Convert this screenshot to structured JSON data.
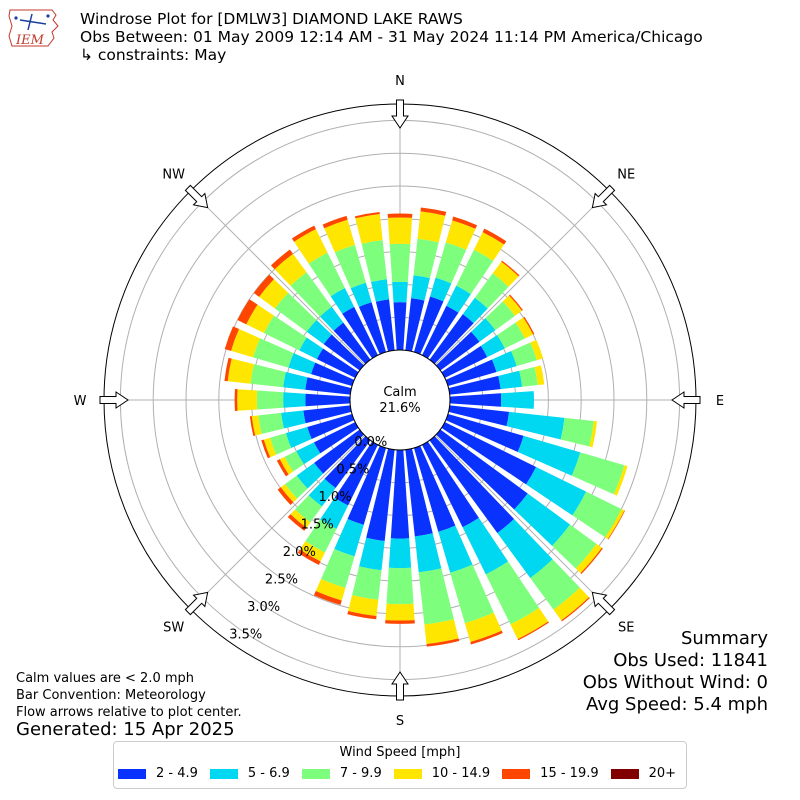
{
  "header": {
    "logo_text": "IEM",
    "title": "Windrose Plot for [DMLW3] DIAMOND LAKE RAWS",
    "period": "Obs Between: 01 May 2009 12:14 AM - 31 May 2024 11:14 PM America/Chicago",
    "constraints": "↳ constraints: May"
  },
  "summary": {
    "heading": "Summary",
    "obs_used": "Obs Used: 11841",
    "obs_without_wind": "Obs Without Wind: 0",
    "avg_speed": "Avg Speed: 5.4 mph"
  },
  "notes": {
    "calm": "Calm values are < 2.0 mph",
    "convention": "Bar Convention: Meteorology",
    "flow": "Flow arrows relative to plot center.",
    "generated": "Generated: 15 Apr 2025"
  },
  "legend": {
    "title": "Wind Speed [mph]",
    "items": [
      {
        "label": "2 - 4.9",
        "color": "#0a32ff"
      },
      {
        "label": "5 - 6.9",
        "color": "#00d7f0"
      },
      {
        "label": "7 - 9.9",
        "color": "#7dff7d"
      },
      {
        "label": "10 - 14.9",
        "color": "#ffe600"
      },
      {
        "label": "15 - 19.9",
        "color": "#ff4600"
      },
      {
        "label": "20+",
        "color": "#800000"
      }
    ]
  },
  "chart_data": {
    "type": "windrose",
    "calm_label": "Calm",
    "calm_value": "21.6%",
    "radial_ticks": [
      "0.0%",
      "0.5%",
      "1.0%",
      "1.5%",
      "2.0%",
      "2.5%",
      "3.0%",
      "3.5%"
    ],
    "radial_tick_values": [
      0,
      0.5,
      1.0,
      1.5,
      2.0,
      2.5,
      3.0,
      3.5
    ],
    "rmax": 3.75,
    "directions": [
      "N",
      "NE",
      "E",
      "SE",
      "S",
      "SW",
      "W",
      "NW"
    ],
    "bin_width_deg": 10,
    "bins_deg": [
      0,
      10,
      20,
      30,
      40,
      50,
      60,
      70,
      80,
      90,
      100,
      110,
      120,
      130,
      140,
      150,
      160,
      170,
      180,
      190,
      200,
      210,
      220,
      230,
      240,
      250,
      260,
      270,
      280,
      290,
      300,
      310,
      320,
      330,
      340,
      350
    ],
    "series": [
      {
        "name": "2 - 4.9",
        "color": "#0a32ff",
        "values": [
          0.73,
          0.8,
          0.88,
          0.84,
          0.86,
          0.74,
          0.72,
          0.77,
          0.78,
          0.78,
          0.91,
          1.2,
          1.55,
          1.65,
          1.75,
          1.4,
          1.33,
          1.33,
          1.35,
          1.4,
          1.22,
          1.03,
          0.9,
          0.86,
          0.7,
          0.71,
          0.72,
          0.68,
          0.69,
          0.65,
          0.65,
          0.68,
          0.7,
          0.82,
          0.79,
          0.78
        ]
      },
      {
        "name": "5 - 6.9",
        "color": "#00d7f0",
        "values": [
          0.31,
          0.35,
          0.3,
          0.34,
          0.31,
          0.3,
          0.3,
          0.32,
          0.33,
          0.5,
          0.85,
          0.9,
          0.85,
          0.8,
          0.85,
          0.8,
          0.65,
          0.55,
          0.45,
          0.45,
          0.5,
          0.4,
          0.35,
          0.33,
          0.3,
          0.34,
          0.34,
          0.34,
          0.34,
          0.36,
          0.3,
          0.32,
          0.3,
          0.32,
          0.31,
          0.31
        ]
      },
      {
        "name": "7 - 9.9",
        "color": "#7dff7d",
        "values": [
          0.58,
          0.56,
          0.56,
          0.61,
          0.46,
          0.37,
          0.34,
          0.32,
          0.24,
          0.0,
          0.45,
          0.7,
          0.6,
          0.5,
          0.6,
          0.85,
          0.8,
          0.8,
          0.55,
          0.45,
          0.5,
          0.4,
          0.3,
          0.22,
          0.2,
          0.25,
          0.35,
          0.4,
          0.5,
          0.56,
          0.6,
          0.6,
          0.65,
          0.6,
          0.6,
          0.6
        ]
      },
      {
        "name": "10 - 14.9",
        "color": "#ffe600",
        "values": [
          0.4,
          0.42,
          0.35,
          0.3,
          0.22,
          0.13,
          0.14,
          0.1,
          0.1,
          0.0,
          0.05,
          0.05,
          0.05,
          0.1,
          0.2,
          0.25,
          0.3,
          0.3,
          0.25,
          0.25,
          0.2,
          0.15,
          0.1,
          0.08,
          0.08,
          0.1,
          0.1,
          0.3,
          0.35,
          0.35,
          0.3,
          0.3,
          0.35,
          0.4,
          0.4,
          0.4
        ]
      },
      {
        "name": "15 - 19.9",
        "color": "#ff4600",
        "values": [
          0.06,
          0.06,
          0.06,
          0.06,
          0.02,
          0.02,
          0.02,
          0.0,
          0.0,
          0.0,
          0.0,
          0.0,
          0.01,
          0.02,
          0.02,
          0.02,
          0.04,
          0.04,
          0.05,
          0.05,
          0.07,
          0.06,
          0.06,
          0.06,
          0.05,
          0.04,
          0.03,
          0.04,
          0.05,
          0.1,
          0.15,
          0.1,
          0.08,
          0.06,
          0.06,
          0.03
        ]
      },
      {
        "name": "20+",
        "color": "#800000",
        "values": [
          0,
          0,
          0,
          0,
          0,
          0,
          0,
          0,
          0,
          0,
          0,
          0,
          0,
          0,
          0,
          0,
          0,
          0,
          0,
          0,
          0,
          0,
          0,
          0,
          0,
          0,
          0,
          0,
          0,
          0,
          0,
          0,
          0,
          0,
          0,
          0
        ]
      }
    ]
  }
}
